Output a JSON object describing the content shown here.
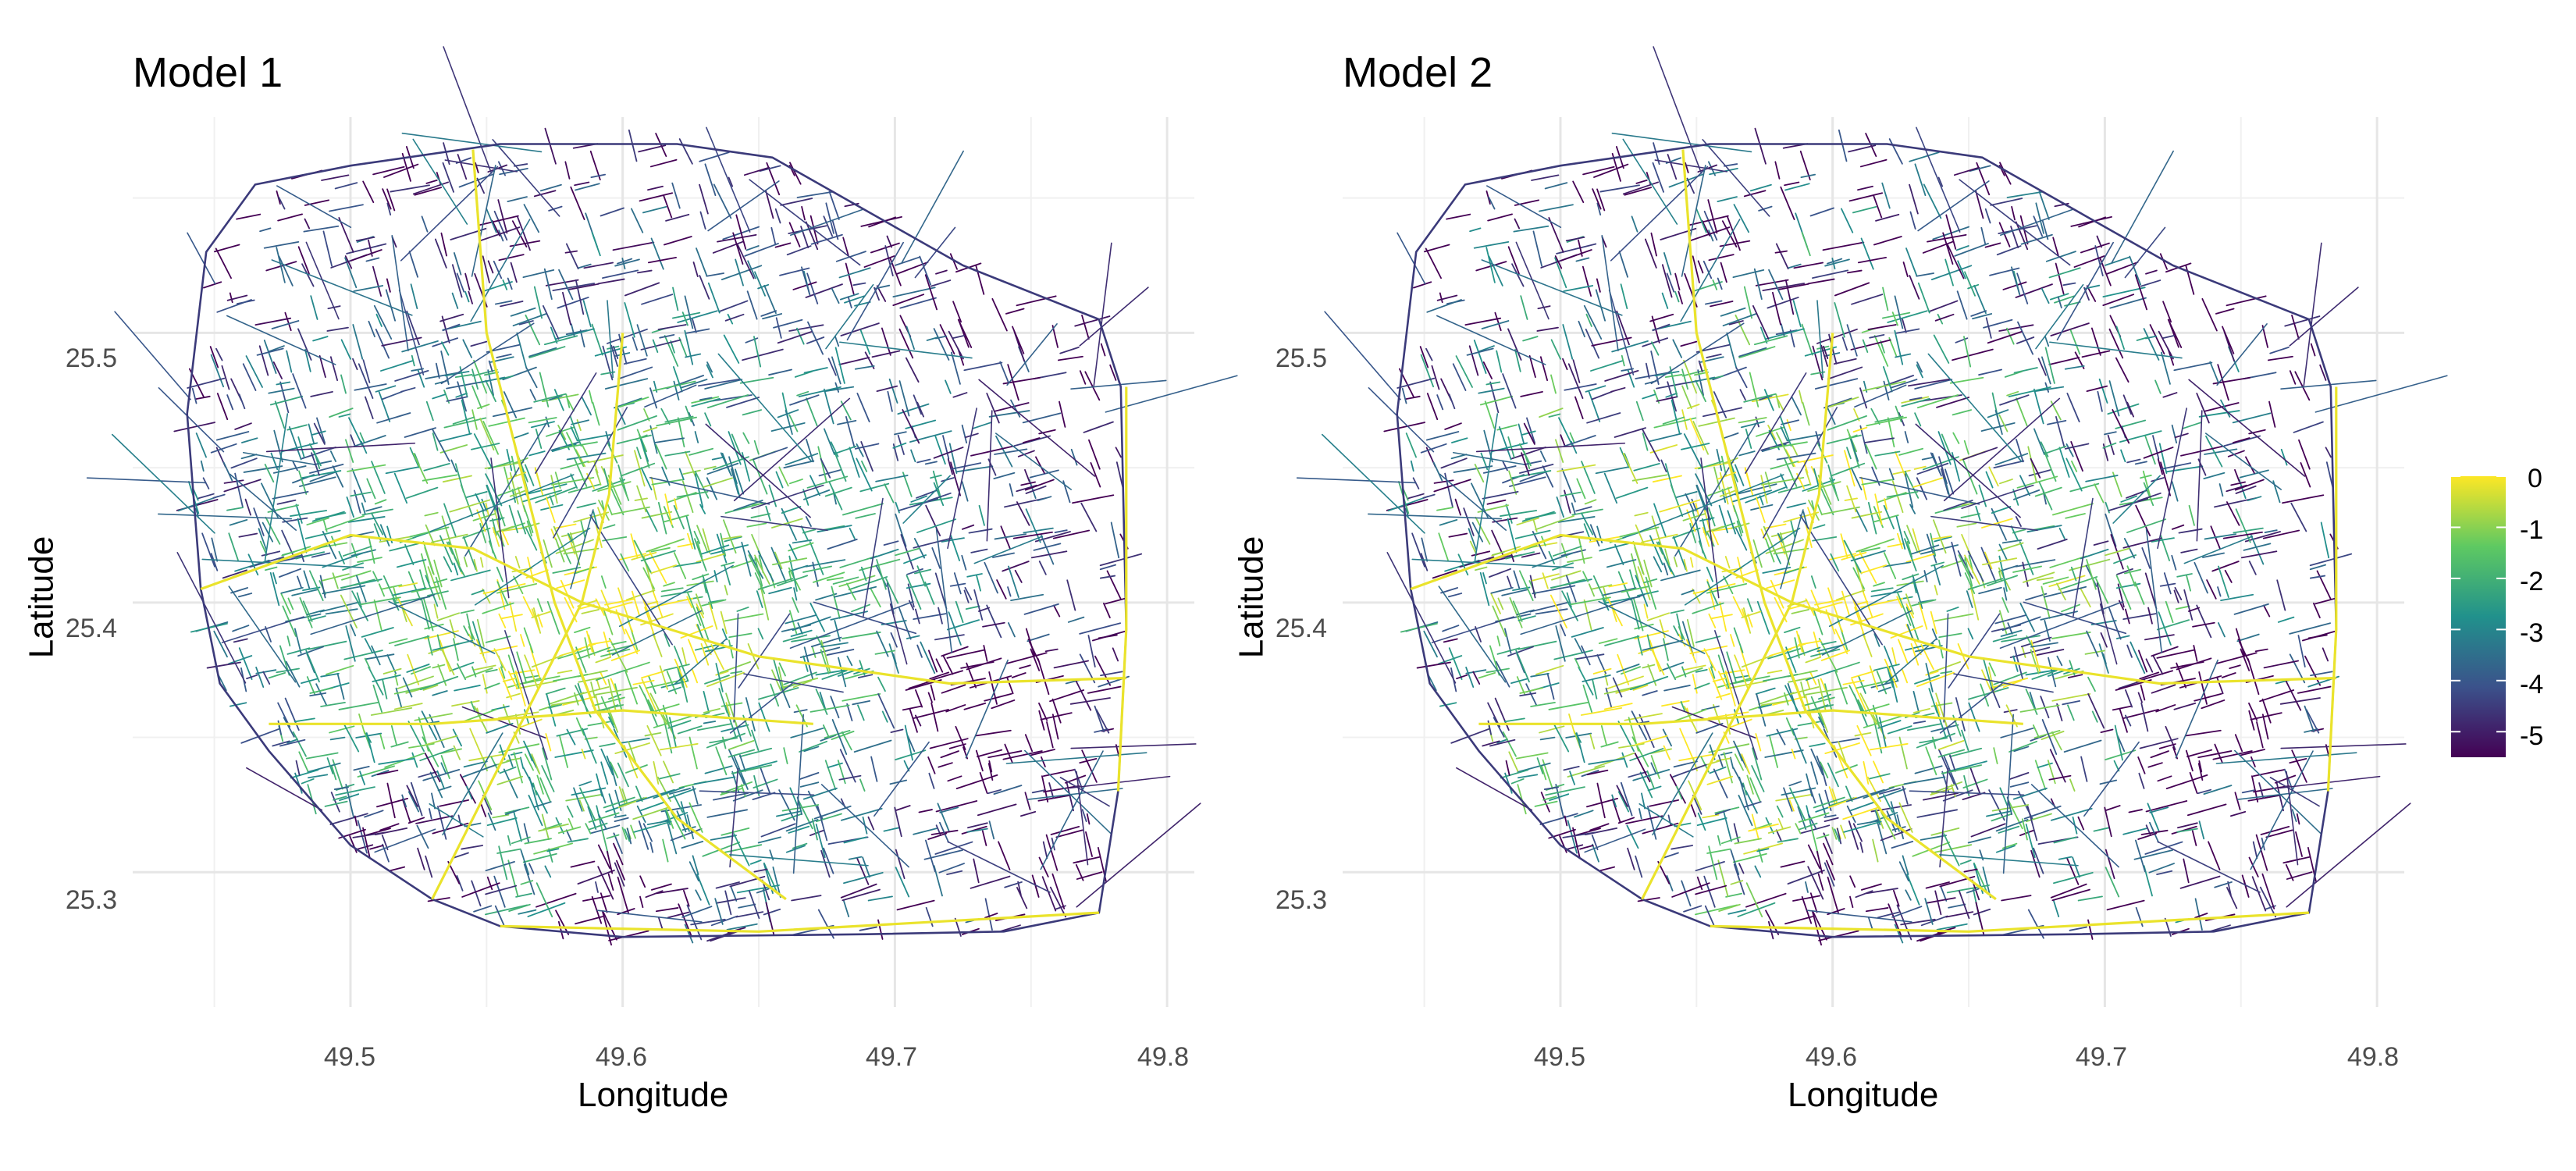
{
  "panels": [
    {
      "title": "Model 1",
      "xlabel": "Longitude",
      "ylabel": "Latitude"
    },
    {
      "title": "Model 2",
      "xlabel": "Longitude",
      "ylabel": "Latitude"
    }
  ],
  "axes": {
    "x_ticks": [
      "49.5",
      "49.6",
      "49.7",
      "49.8"
    ],
    "y_ticks": [
      "25.5",
      "25.4",
      "25.3"
    ],
    "xlim": [
      49.42,
      49.81
    ],
    "ylim": [
      25.25,
      25.58
    ],
    "grid": true
  },
  "legend": {
    "ticks": [
      "0",
      "-1",
      "-2",
      "-3",
      "-4",
      "-5"
    ],
    "range": [
      -5.5,
      0
    ],
    "palette": "viridis",
    "colors": [
      "#440154",
      "#3b528b",
      "#21918c",
      "#5ec962",
      "#fde725"
    ]
  }
}
